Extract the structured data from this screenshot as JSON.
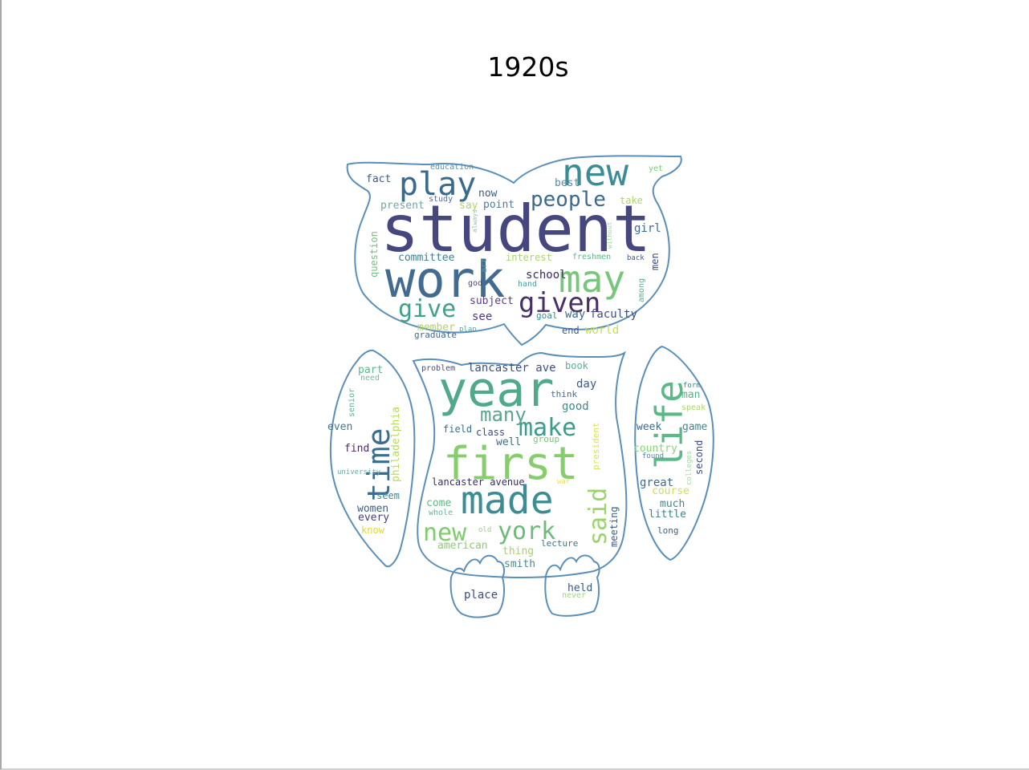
{
  "title": "1920s",
  "cloud": {
    "outline_color": "#5b8fb9",
    "words": [
      {
        "t": "student",
        "c": "#46477f"
      },
      {
        "t": "work",
        "c": "#426b8f"
      },
      {
        "t": "year",
        "c": "#4fa98a"
      },
      {
        "t": "first",
        "c": "#86ce6b"
      },
      {
        "t": "made",
        "c": "#3b8c93"
      },
      {
        "t": "may",
        "c": "#78c679"
      },
      {
        "t": "new",
        "c": "#3a8c95"
      },
      {
        "t": "play",
        "c": "#3b6b8c"
      },
      {
        "t": "time",
        "c": "#3d6d8d"
      },
      {
        "t": "life",
        "c": "#5ab985"
      },
      {
        "t": "given",
        "c": "#47306a"
      },
      {
        "t": "give",
        "c": "#41a189"
      },
      {
        "t": "people",
        "c": "#3c6a8f"
      },
      {
        "t": "make",
        "c": "#3b9b8c"
      },
      {
        "t": "many",
        "c": "#5aa68c"
      },
      {
        "t": "new",
        "c": "#7fcc6d"
      },
      {
        "t": "york",
        "c": "#6dbb7a"
      },
      {
        "t": "said",
        "c": "#9bd46a"
      },
      {
        "t": "lancaster ave",
        "c": "#3b4f80"
      },
      {
        "t": "lancaster avenue",
        "c": "#3a2d60"
      },
      {
        "t": "philadelphia",
        "c": "#b6dc5a"
      },
      {
        "t": "committee",
        "c": "#3f7f8e"
      },
      {
        "t": "interest",
        "c": "#a6d867"
      },
      {
        "t": "school",
        "c": "#3c2c5f"
      },
      {
        "t": "subject",
        "c": "#5a3d80"
      },
      {
        "t": "faculty",
        "c": "#3c4f84"
      },
      {
        "t": "way",
        "c": "#3e6a8c"
      },
      {
        "t": "world",
        "c": "#c2df5a"
      },
      {
        "t": "member",
        "c": "#b3d45c"
      },
      {
        "t": "graduate",
        "c": "#3c6d8c"
      },
      {
        "t": "plan",
        "c": "#56a3a4"
      },
      {
        "t": "goal",
        "c": "#3a8b90"
      },
      {
        "t": "end",
        "c": "#3c5c8d"
      },
      {
        "t": "see",
        "c": "#4a3b79"
      },
      {
        "t": "hand",
        "c": "#42a3a3"
      },
      {
        "t": "god",
        "c": "#4a4a7d"
      },
      {
        "t": "art",
        "c": "#48a2a0"
      },
      {
        "t": "question",
        "c": "#6fc27a"
      },
      {
        "t": "fact",
        "c": "#3c5e88"
      },
      {
        "t": "education",
        "c": "#5d8fa7"
      },
      {
        "t": "study",
        "c": "#5a6d8f"
      },
      {
        "t": "present",
        "c": "#72a7a3"
      },
      {
        "t": "now",
        "c": "#3a5c86"
      },
      {
        "t": "say",
        "c": "#b3d464"
      },
      {
        "t": "point",
        "c": "#4b7ea0"
      },
      {
        "t": "always",
        "c": "#8fc7a0"
      },
      {
        "t": "best",
        "c": "#5a8ba6"
      },
      {
        "t": "take",
        "c": "#b0d763"
      },
      {
        "t": "yet",
        "c": "#79cc7c"
      },
      {
        "t": "girl",
        "c": "#3e6c8e"
      },
      {
        "t": "without",
        "c": "#9dd7a0"
      },
      {
        "t": "freshmen",
        "c": "#62b58a"
      },
      {
        "t": "back",
        "c": "#3c5a8a"
      },
      {
        "t": "men",
        "c": "#3c4a7c"
      },
      {
        "t": "among",
        "c": "#5bb291"
      },
      {
        "t": "part",
        "c": "#5ab98a"
      },
      {
        "t": "need",
        "c": "#7fb4a0"
      },
      {
        "t": "senior",
        "c": "#5eb38c"
      },
      {
        "t": "even",
        "c": "#3d7b8d"
      },
      {
        "t": "find",
        "c": "#4a2c66"
      },
      {
        "t": "university",
        "c": "#68a8a8"
      },
      {
        "t": "seem",
        "c": "#3a8d91"
      },
      {
        "t": "women",
        "c": "#3f5d86"
      },
      {
        "t": "every",
        "c": "#4a3d78"
      },
      {
        "t": "know",
        "c": "#e0d640"
      },
      {
        "t": "problem",
        "c": "#4a4c7b"
      },
      {
        "t": "book",
        "c": "#52b392"
      },
      {
        "t": "day",
        "c": "#3b5a86"
      },
      {
        "t": "think",
        "c": "#4d6c8c"
      },
      {
        "t": "good",
        "c": "#3c8a8f"
      },
      {
        "t": "president",
        "c": "#d8e357"
      },
      {
        "t": "field",
        "c": "#3d6f8c"
      },
      {
        "t": "class",
        "c": "#3b4a82"
      },
      {
        "t": "group",
        "c": "#7bc27d"
      },
      {
        "t": "well",
        "c": "#3d6e8c"
      },
      {
        "t": "war",
        "c": "#e6e05a"
      },
      {
        "t": "come",
        "c": "#5dbb86"
      },
      {
        "t": "whole",
        "c": "#64b8a1"
      },
      {
        "t": "old",
        "c": "#9fd08e"
      },
      {
        "t": "meeting",
        "c": "#3c5c84"
      },
      {
        "t": "american",
        "c": "#8fcc6f"
      },
      {
        "t": "thing",
        "c": "#a6d468"
      },
      {
        "t": "lecture",
        "c": "#3d7690"
      },
      {
        "t": "smith",
        "c": "#4a8e90"
      },
      {
        "t": "place",
        "c": "#3c4d80"
      },
      {
        "t": "held",
        "c": "#3c5a87"
      },
      {
        "t": "never",
        "c": "#9fd486"
      },
      {
        "t": "form",
        "c": "#457d97"
      },
      {
        "t": "man",
        "c": "#59b389"
      },
      {
        "t": "speak",
        "c": "#a6d86a"
      },
      {
        "t": "week",
        "c": "#3c6b8c"
      },
      {
        "t": "game",
        "c": "#3e8a91"
      },
      {
        "t": "country",
        "c": "#8dd27a"
      },
      {
        "t": "found",
        "c": "#5a7da0"
      },
      {
        "t": "colleges",
        "c": "#a8d8a8"
      },
      {
        "t": "second",
        "c": "#3d4c80"
      },
      {
        "t": "great",
        "c": "#3d6a8b"
      },
      {
        "t": "course",
        "c": "#d0e050"
      },
      {
        "t": "much",
        "c": "#3b8b90"
      },
      {
        "t": "little",
        "c": "#3a8590"
      },
      {
        "t": "long",
        "c": "#3e6285"
      }
    ]
  }
}
